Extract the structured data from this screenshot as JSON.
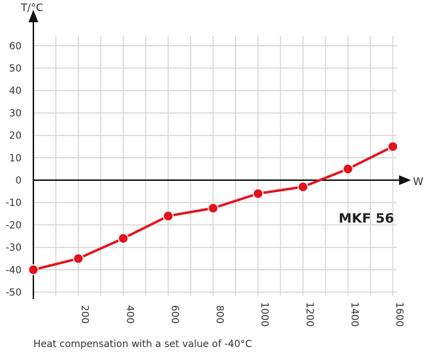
{
  "chart_data": {
    "type": "line",
    "title": "",
    "xlabel": "W",
    "ylabel": "T/°C",
    "annotation": "MKF 56",
    "caption": "Heat compensation with a set value of -40°C",
    "xlim": [
      0,
      1600
    ],
    "ylim": [
      -50,
      60
    ],
    "grid": true,
    "x_ticks": [
      "200",
      "400",
      "600",
      "800",
      "1000",
      "1200",
      "1400",
      "1600"
    ],
    "y_ticks": [
      "60",
      "50",
      "40",
      "30",
      "20",
      "10",
      "0",
      "-10",
      "-20",
      "-30",
      "-40",
      "-50"
    ],
    "series": [
      {
        "color": "#e3121b",
        "x": [
          0,
          200,
          400,
          600,
          800,
          1000,
          1200,
          1400,
          1600
        ],
        "y": [
          -40,
          -35,
          -26,
          -16,
          -12.5,
          -6,
          -3,
          5,
          15
        ]
      }
    ]
  }
}
